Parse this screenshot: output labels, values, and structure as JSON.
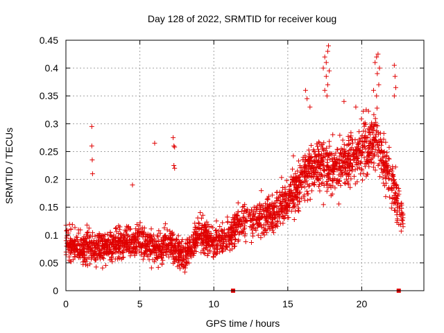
{
  "chart_data": {
    "type": "scatter",
    "title": "Day 128 of 2022, SRMTID for receiver koug",
    "xlabel": "GPS time / hours",
    "ylabel": "SRMTID / TECUs",
    "xlim": [
      0,
      24.2
    ],
    "ylim": [
      0,
      0.45
    ],
    "x_ticks": [
      "0",
      "5",
      "10",
      "15",
      "20"
    ],
    "x_tick_values": [
      0,
      5,
      10,
      15,
      20
    ],
    "y_ticks": [
      "0",
      "0.05",
      "0.1",
      "0.15",
      "0.2",
      "0.25",
      "0.3",
      "0.35",
      "0.4",
      "0.45"
    ],
    "y_tick_values": [
      0,
      0.05,
      0.1,
      0.15,
      0.2,
      0.25,
      0.3,
      0.35,
      0.4,
      0.45
    ],
    "grid": true,
    "marker": "+",
    "color": "#e00000",
    "trend_profile": {
      "hours": [
        0,
        1,
        2,
        3,
        4,
        5,
        6,
        7,
        8,
        9,
        10,
        11,
        12,
        13,
        14,
        15,
        16,
        17,
        18,
        19,
        20,
        21,
        22,
        22.8
      ],
      "srmtid": [
        0.085,
        0.08,
        0.075,
        0.08,
        0.085,
        0.09,
        0.075,
        0.085,
        0.06,
        0.1,
        0.085,
        0.1,
        0.125,
        0.13,
        0.14,
        0.16,
        0.2,
        0.23,
        0.22,
        0.23,
        0.25,
        0.27,
        0.2,
        0.12
      ]
    },
    "spread": 0.028,
    "samples_per_hour": 110,
    "outliers": [
      {
        "x": 1.75,
        "y": 0.295
      },
      {
        "x": 1.75,
        "y": 0.26
      },
      {
        "x": 1.78,
        "y": 0.235
      },
      {
        "x": 1.8,
        "y": 0.21
      },
      {
        "x": 6.0,
        "y": 0.265
      },
      {
        "x": 7.25,
        "y": 0.275
      },
      {
        "x": 7.3,
        "y": 0.26
      },
      {
        "x": 7.35,
        "y": 0.258
      },
      {
        "x": 7.3,
        "y": 0.225
      },
      {
        "x": 7.35,
        "y": 0.22
      },
      {
        "x": 4.5,
        "y": 0.19
      },
      {
        "x": 17.5,
        "y": 0.42
      },
      {
        "x": 17.6,
        "y": 0.41
      },
      {
        "x": 17.7,
        "y": 0.43
      },
      {
        "x": 17.75,
        "y": 0.44
      },
      {
        "x": 17.4,
        "y": 0.4
      },
      {
        "x": 17.8,
        "y": 0.395
      },
      {
        "x": 17.6,
        "y": 0.385
      },
      {
        "x": 17.7,
        "y": 0.37
      },
      {
        "x": 17.5,
        "y": 0.36
      },
      {
        "x": 17.65,
        "y": 0.35
      },
      {
        "x": 20.9,
        "y": 0.41
      },
      {
        "x": 21.0,
        "y": 0.42
      },
      {
        "x": 21.1,
        "y": 0.425
      },
      {
        "x": 21.2,
        "y": 0.4
      },
      {
        "x": 21.05,
        "y": 0.39
      },
      {
        "x": 21.15,
        "y": 0.37
      },
      {
        "x": 20.8,
        "y": 0.36
      },
      {
        "x": 21.0,
        "y": 0.35
      },
      {
        "x": 22.2,
        "y": 0.405
      },
      {
        "x": 22.25,
        "y": 0.385
      },
      {
        "x": 22.3,
        "y": 0.365
      },
      {
        "x": 22.2,
        "y": 0.35
      },
      {
        "x": 16.2,
        "y": 0.36
      },
      {
        "x": 16.3,
        "y": 0.345
      },
      {
        "x": 16.5,
        "y": 0.33
      },
      {
        "x": 18.8,
        "y": 0.34
      },
      {
        "x": 19.6,
        "y": 0.33
      },
      {
        "x": 20.3,
        "y": 0.325
      }
    ],
    "missing_data_markers": [
      {
        "x": 11.3,
        "y": 0
      },
      {
        "x": 22.5,
        "y": 0
      }
    ]
  }
}
